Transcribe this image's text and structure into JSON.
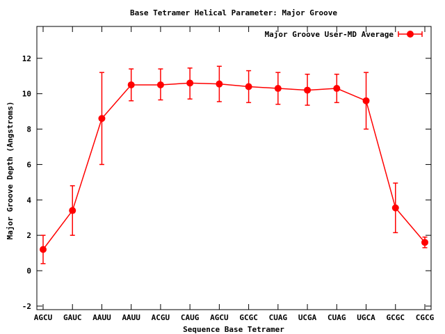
{
  "chart_data": {
    "type": "line",
    "title": "Base Tetramer Helical Parameter: Major Groove",
    "xlabel": "Sequence Base Tetramer",
    "ylabel": "Major Groove Depth (Angstroms)",
    "ylim": [
      -2.2,
      13.8
    ],
    "yticks": [
      -2,
      0,
      2,
      4,
      6,
      8,
      10,
      12
    ],
    "grid": false,
    "legend_position": "top-right",
    "categories": [
      "AGCU",
      "GAUC",
      "AAUU",
      "AAUU",
      "ACGU",
      "CAUG",
      "AGCU",
      "GCGC",
      "CUAG",
      "UCGA",
      "CUAG",
      "UGCA",
      "GCGC",
      "CGCG"
    ],
    "series": [
      {
        "name": "Major Groove User-MD Average",
        "color": "#ff0000",
        "values": [
          1.2,
          3.4,
          8.6,
          10.5,
          10.5,
          10.6,
          10.55,
          10.4,
          10.3,
          10.2,
          10.3,
          9.6,
          3.55,
          1.6
        ],
        "err_low": [
          0.4,
          2.0,
          6.0,
          9.6,
          9.65,
          9.7,
          9.55,
          9.5,
          9.4,
          9.35,
          9.5,
          8.0,
          2.15,
          1.3
        ],
        "err_high": [
          2.0,
          4.8,
          11.2,
          11.4,
          11.4,
          11.45,
          11.55,
          11.3,
          11.2,
          11.1,
          11.1,
          11.2,
          4.95,
          1.9
        ]
      }
    ]
  }
}
